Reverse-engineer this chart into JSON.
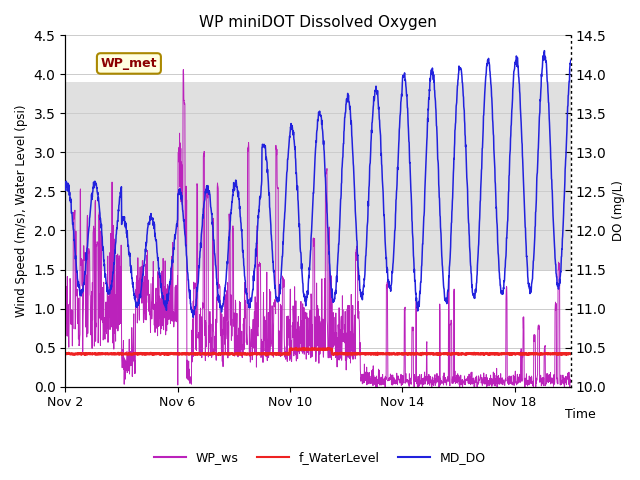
{
  "title": "WP miniDOT Dissolved Oxygen",
  "xlabel": "Time",
  "ylabel_left": "Wind Speed (m/s), Water Level (psi)",
  "ylabel_right": "DO (mg/L)",
  "ylim_left": [
    0.0,
    4.5
  ],
  "ylim_right": [
    10.0,
    14.5
  ],
  "yticks_left": [
    0.0,
    0.5,
    1.0,
    1.5,
    2.0,
    2.5,
    3.0,
    3.5,
    4.0,
    4.5
  ],
  "yticks_right": [
    10.0,
    10.5,
    11.0,
    11.5,
    12.0,
    12.5,
    13.0,
    13.5,
    14.0,
    14.5
  ],
  "xtick_labels": [
    "Nov 2",
    "Nov 6",
    "Nov 10",
    "Nov 14",
    "Nov 18"
  ],
  "xtick_pos": [
    0,
    4,
    8,
    12,
    16
  ],
  "xlim": [
    0,
    18
  ],
  "wp_met_label": "WP_met",
  "legend_labels": [
    "WP_ws",
    "f_WaterLevel",
    "MD_DO"
  ],
  "wp_ws_color": "#bb22bb",
  "f_water_color": "#ee2222",
  "md_do_color": "#2222dd",
  "grid_color": "#cccccc",
  "shade_color": "#e0e0e0",
  "shade_y1": 1.5,
  "shade_y2": 3.9,
  "title_fontsize": 11,
  "axis_fontsize": 8.5,
  "tick_fontsize": 9,
  "legend_fontsize": 9
}
